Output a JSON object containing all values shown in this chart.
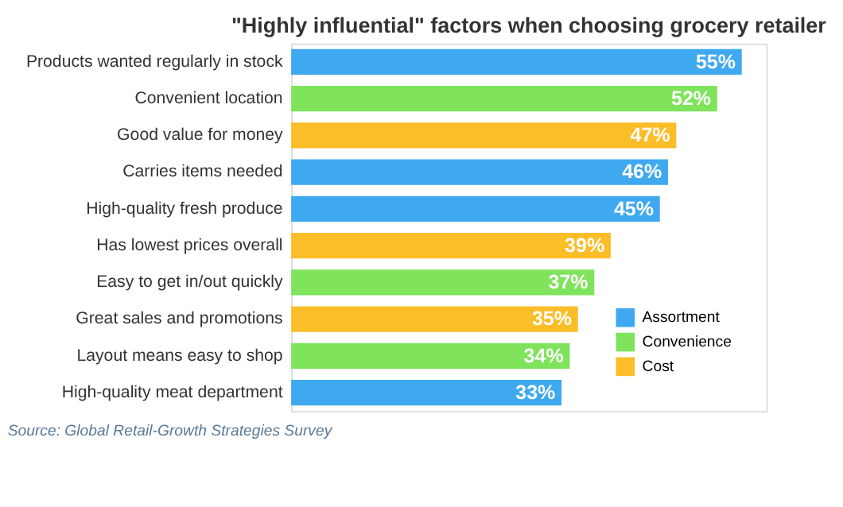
{
  "chart_data": {
    "type": "bar",
    "orientation": "horizontal",
    "title": "\"Highly influential\" factors when choosing grocery retailer",
    "categories": [
      "Products wanted regularly in stock",
      "Convenient location",
      "Good value for money",
      "Carries items needed",
      "High-quality fresh produce",
      "Has lowest prices overall",
      "Easy to get in/out quickly",
      "Great sales and promotions",
      "Layout means easy to shop",
      "High-quality meat department"
    ],
    "series": [
      {
        "name": "Assortment",
        "color": "#3fa9ef",
        "values": [
          55,
          null,
          null,
          46,
          45,
          null,
          null,
          null,
          null,
          33
        ],
        "value_labels": [
          "55%",
          null,
          null,
          "46%",
          "45%",
          null,
          null,
          null,
          null,
          "33%"
        ]
      },
      {
        "name": "Convenience",
        "color": "#7fe35c",
        "values": [
          null,
          52,
          null,
          null,
          null,
          null,
          37,
          null,
          34,
          null
        ],
        "value_labels": [
          null,
          "52%",
          null,
          null,
          null,
          null,
          "37%",
          null,
          "34%",
          null
        ]
      },
      {
        "name": "Cost",
        "color": "#fbbd28",
        "values": [
          null,
          null,
          47,
          null,
          null,
          39,
          null,
          35,
          null,
          null
        ],
        "value_labels": [
          null,
          null,
          "47%",
          null,
          null,
          "39%",
          null,
          "35%",
          null,
          null
        ]
      }
    ],
    "xlim": [
      0,
      58
    ],
    "tick_labels": "y",
    "grid": false,
    "legend": "bottom right",
    "annotations": [
      "Source: Global Retail-Growth Strategies Survey"
    ]
  }
}
